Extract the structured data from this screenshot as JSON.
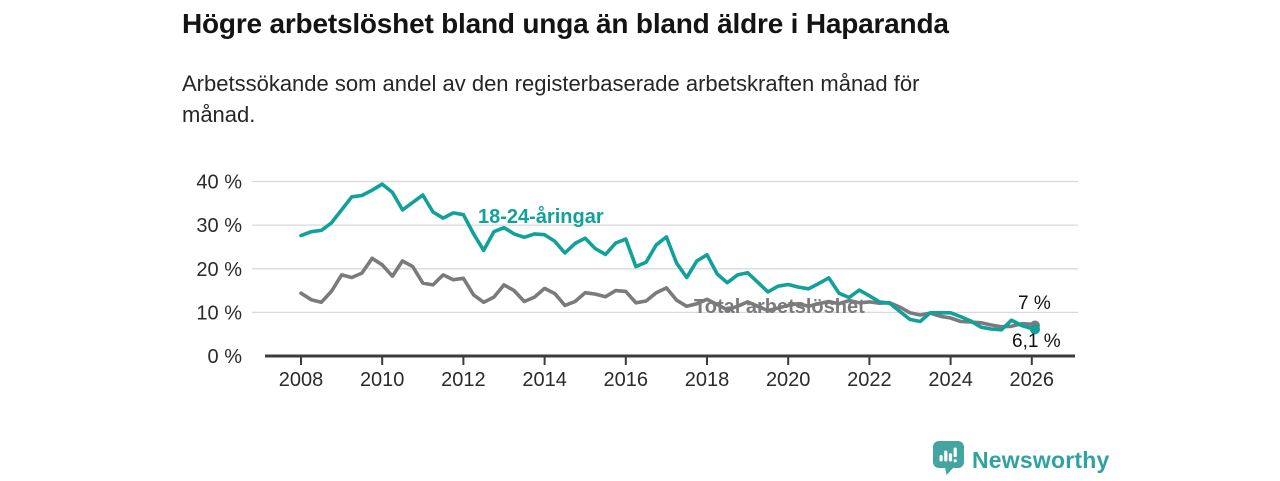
{
  "header": {
    "title": "Högre arbetslöshet bland unga än bland äldre i Haparanda",
    "subtitle_line1": "Arbetssökande som andel av den registerbaserade arbetskraften månad för",
    "subtitle_line2": "månad."
  },
  "footer": {
    "brand": "Newsworthy",
    "brand_color": "#31a2a1",
    "logo_icon": "speech-bubble-bar-chart-exclamation"
  },
  "chart_data": {
    "type": "line",
    "title": "Högre arbetslöshet bland unga än bland äldre i Haparanda",
    "subtitle": "Arbetssökande som andel av den registerbaserade arbetskraften månad för månad.",
    "xlabel": "",
    "ylabel": "",
    "ylim": [
      0,
      40
    ],
    "grid": "horizontal",
    "legend_position": "inline-labels",
    "x": [
      2008,
      2008.25,
      2008.5,
      2008.75,
      2009,
      2009.25,
      2009.5,
      2009.75,
      2010,
      2010.25,
      2010.5,
      2010.75,
      2011,
      2011.25,
      2011.5,
      2011.75,
      2012,
      2012.25,
      2012.5,
      2012.75,
      2013,
      2013.25,
      2013.5,
      2013.75,
      2014,
      2014.25,
      2014.5,
      2014.75,
      2015,
      2015.25,
      2015.5,
      2015.75,
      2016,
      2016.25,
      2016.5,
      2016.75,
      2017,
      2017.25,
      2017.5,
      2017.75,
      2018,
      2018.25,
      2018.5,
      2018.75,
      2019,
      2019.25,
      2019.5,
      2019.75,
      2020,
      2020.25,
      2020.5,
      2020.75,
      2021,
      2021.25,
      2021.5,
      2021.75,
      2022,
      2022.25,
      2022.5,
      2022.75,
      2023,
      2023.25,
      2023.5,
      2023.75,
      2024,
      2024.25,
      2024.5,
      2024.75,
      2025,
      2025.25,
      2025.5,
      2025.75,
      2026,
      2026.08
    ],
    "series": [
      {
        "name": "18-24-åringar",
        "color": "#12a19a",
        "latest_label": "6,1 %",
        "values": [
          27.6,
          28.5,
          28.8,
          30.5,
          33.5,
          36.5,
          36.8,
          38.0,
          39.4,
          37.5,
          33.5,
          35.2,
          36.9,
          33.0,
          31.6,
          32.8,
          32.4,
          28.0,
          24.2,
          28.5,
          29.4,
          28.0,
          27.2,
          28.0,
          27.8,
          26.3,
          23.6,
          25.8,
          27.0,
          24.6,
          23.3,
          25.9,
          26.8,
          20.5,
          21.5,
          25.5,
          27.3,
          21.3,
          18.0,
          21.8,
          23.2,
          18.8,
          16.8,
          18.6,
          19.1,
          16.9,
          14.7,
          16.0,
          16.4,
          15.8,
          15.4,
          16.6,
          17.9,
          14.4,
          13.4,
          15.1,
          13.8,
          12.4,
          12.1,
          10.2,
          8.4,
          7.9,
          9.9,
          9.9,
          9.9,
          9.0,
          8.0,
          6.6,
          6.2,
          6.0,
          8.2,
          7.0,
          6.3,
          6.1
        ]
      },
      {
        "name": "Total arbetslöshet",
        "color": "#7b7b7e",
        "latest_label": "7 %",
        "values": [
          14.4,
          12.9,
          12.3,
          14.8,
          18.6,
          18.0,
          19.0,
          22.4,
          20.9,
          18.3,
          21.8,
          20.5,
          16.7,
          16.3,
          18.6,
          17.5,
          17.8,
          14.0,
          12.3,
          13.5,
          16.3,
          15.0,
          12.5,
          13.5,
          15.5,
          14.3,
          11.6,
          12.5,
          14.5,
          14.2,
          13.6,
          15.0,
          14.8,
          12.2,
          12.6,
          14.5,
          15.6,
          12.8,
          11.4,
          12.0,
          13.0,
          11.8,
          10.6,
          11.4,
          12.4,
          11.4,
          10.4,
          11.0,
          11.6,
          12.0,
          11.4,
          12.0,
          12.5,
          12.0,
          12.7,
          12.2,
          12.4,
          12.1,
          12.2,
          11.2,
          9.9,
          9.4,
          9.8,
          9.1,
          8.7,
          7.9,
          7.8,
          7.6,
          7.1,
          6.7,
          6.8,
          7.4,
          7.3,
          7.0
        ]
      }
    ],
    "xticks": [
      {
        "value": 2008,
        "label": "2008"
      },
      {
        "value": 2010,
        "label": "2010"
      },
      {
        "value": 2012,
        "label": "2012"
      },
      {
        "value": 2014,
        "label": "2014"
      },
      {
        "value": 2016,
        "label": "2016"
      },
      {
        "value": 2018,
        "label": "2018"
      },
      {
        "value": 2020,
        "label": "2020"
      },
      {
        "value": 2022,
        "label": "2022"
      },
      {
        "value": 2024,
        "label": "2024"
      },
      {
        "value": 2026,
        "label": "2026"
      }
    ],
    "yticks": [
      {
        "value": 0,
        "label": "0 %"
      },
      {
        "value": 10,
        "label": "10 %"
      },
      {
        "value": 20,
        "label": "20 %"
      },
      {
        "value": 30,
        "label": "30 %"
      },
      {
        "value": 40,
        "label": "40 %"
      }
    ]
  }
}
